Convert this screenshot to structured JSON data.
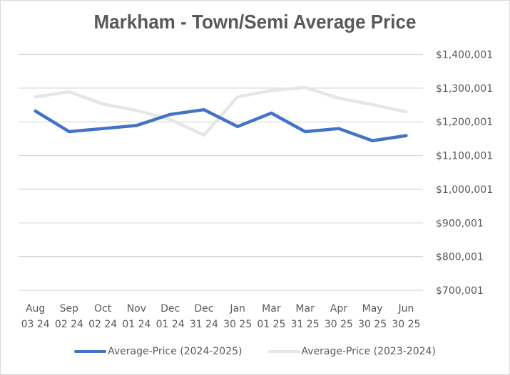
{
  "chart_data": {
    "type": "line",
    "title": "Markham - Town/Semi Average Price",
    "xlabel": "",
    "ylabel": "",
    "ylim": [
      700001,
      1400001
    ],
    "yticks": [
      "$1,400,001",
      "$1,300,001",
      "$1,200,001",
      "$1,100,001",
      "$1,000,001",
      "$900,001",
      "$800,001",
      "$700,001"
    ],
    "ytick_values": [
      1400001,
      1300001,
      1200001,
      1100001,
      1000001,
      900001,
      800001,
      700001
    ],
    "y_axis_position": "right",
    "grid": true,
    "legend_position": "bottom",
    "categories": [
      [
        "Aug",
        "03 24"
      ],
      [
        "Sep",
        "02 24"
      ],
      [
        "Oct",
        "02 24"
      ],
      [
        "Nov",
        "01 24"
      ],
      [
        "Dec",
        "01 24"
      ],
      [
        "Dec",
        "31 24"
      ],
      [
        "Jan",
        "30 25"
      ],
      [
        "Mar",
        "01 25"
      ],
      [
        "Mar",
        "31 25"
      ],
      [
        "Apr",
        "30 25"
      ],
      [
        "May",
        "30 25"
      ],
      [
        "Jun",
        "30 25"
      ]
    ],
    "series": [
      {
        "name": "Average-Price (2024-2025)",
        "color": "#4472c4",
        "values": [
          1232000,
          1171000,
          1180000,
          1189000,
          1222000,
          1236000,
          1186000,
          1226000,
          1171000,
          1180000,
          1144000,
          1159000
        ]
      },
      {
        "name": "Average-Price (2023-2024)",
        "color": "#e7e6e6",
        "values": [
          1274000,
          1289000,
          1253000,
          1234000,
          1207000,
          1161000,
          1274000,
          1293000,
          1302000,
          1270000,
          1251000,
          1230000
        ]
      }
    ]
  }
}
